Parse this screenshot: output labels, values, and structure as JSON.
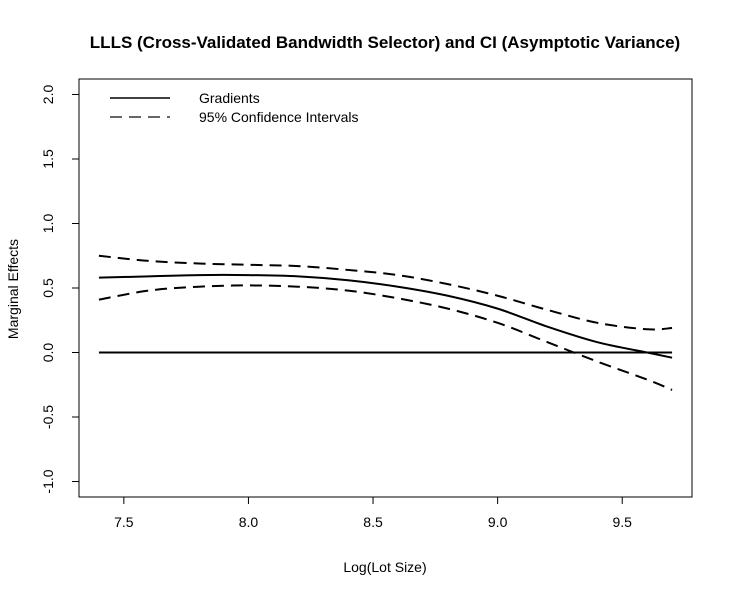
{
  "chart_data": {
    "type": "line",
    "title": "LLLS (Cross-Validated Bandwidth Selector) and CI (Asymptotic Variance)",
    "xlabel": "Log(Lot Size)",
    "ylabel": "Marginal Effects",
    "xlim": [
      7.32,
      9.78
    ],
    "ylim": [
      -1.12,
      2.12
    ],
    "x_ticks": [
      7.5,
      8.0,
      8.5,
      9.0,
      9.5
    ],
    "x_tick_labels": [
      "7.5",
      "8.0",
      "8.5",
      "9.0",
      "9.5"
    ],
    "y_ticks": [
      -1.0,
      -0.5,
      0.0,
      0.5,
      1.0,
      1.5,
      2.0
    ],
    "y_tick_labels": [
      "-1.0",
      "-0.5",
      "0.0",
      "0.5",
      "1.0",
      "1.5",
      "2.0"
    ],
    "grid": false,
    "legend": {
      "position": "top-left",
      "entries": [
        {
          "label": "Gradients",
          "style": "solid"
        },
        {
          "label": "95% Confidence Intervals",
          "style": "dashed"
        }
      ]
    },
    "x": [
      7.4,
      7.6,
      7.8,
      8.0,
      8.2,
      8.4,
      8.6,
      8.8,
      9.0,
      9.2,
      9.4,
      9.6,
      9.7
    ],
    "series": [
      {
        "name": "Gradients",
        "style": "solid",
        "values": [
          0.58,
          0.59,
          0.6,
          0.6,
          0.59,
          0.56,
          0.51,
          0.44,
          0.34,
          0.2,
          0.08,
          0.0,
          -0.04
        ]
      },
      {
        "name": "95% Confidence Intervals",
        "style": "dashed",
        "values": [
          0.75,
          0.71,
          0.69,
          0.68,
          0.67,
          0.64,
          0.6,
          0.53,
          0.44,
          0.33,
          0.23,
          0.18,
          0.19
        ]
      },
      {
        "name": "95% Confidence Intervals",
        "style": "dashed",
        "values": [
          0.41,
          0.48,
          0.51,
          0.52,
          0.51,
          0.48,
          0.42,
          0.34,
          0.23,
          0.08,
          -0.07,
          -0.21,
          -0.29
        ]
      }
    ],
    "reference_line": {
      "y": 0.0,
      "x_range": [
        7.4,
        9.7
      ],
      "style": "solid"
    }
  }
}
